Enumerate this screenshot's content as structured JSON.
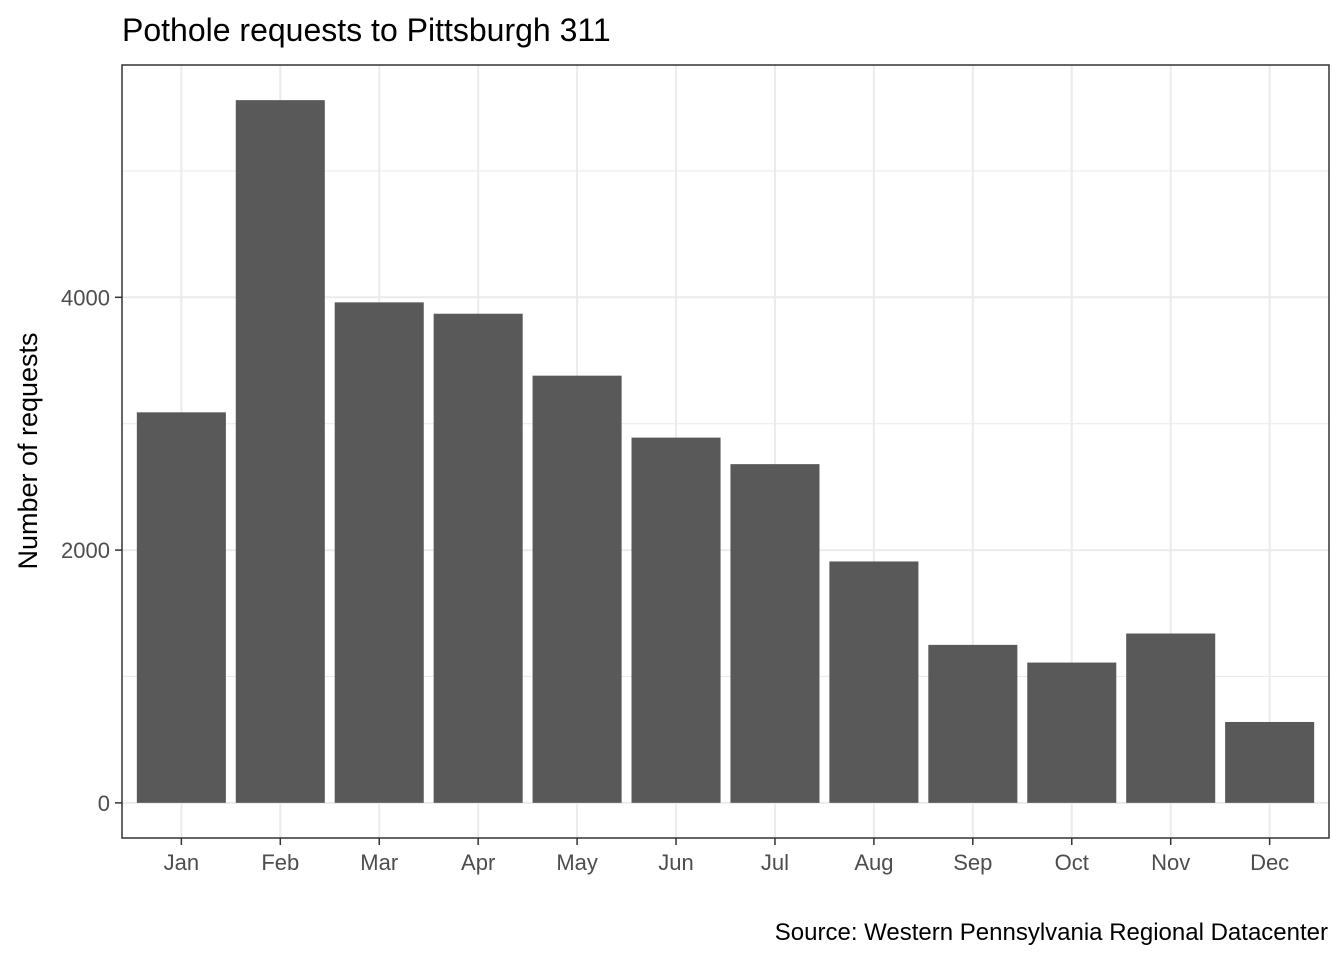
{
  "chart_data": {
    "type": "bar",
    "title": "Pothole requests to Pittsburgh 311",
    "xlabel": "",
    "ylabel": "Number of requests",
    "caption": "Source: Western Pennsylvania Regional Datacenter",
    "categories": [
      "Jan",
      "Feb",
      "Mar",
      "Apr",
      "May",
      "Jun",
      "Jul",
      "Aug",
      "Sep",
      "Oct",
      "Nov",
      "Dec"
    ],
    "values": [
      3090,
      5560,
      3960,
      3870,
      3380,
      2890,
      2680,
      1910,
      1250,
      1110,
      1340,
      640
    ],
    "yticks": [
      0,
      2000,
      4000
    ],
    "ytick_labels": [
      "0",
      "2000",
      "4000"
    ],
    "ylim": [
      -278,
      5838
    ],
    "grid": true,
    "legend": "none",
    "colors": {
      "bar": "#595959",
      "grid": "#ebebeb",
      "panel_border": "#333333",
      "tick_label": "#4d4d4d",
      "text": "#000000"
    }
  }
}
